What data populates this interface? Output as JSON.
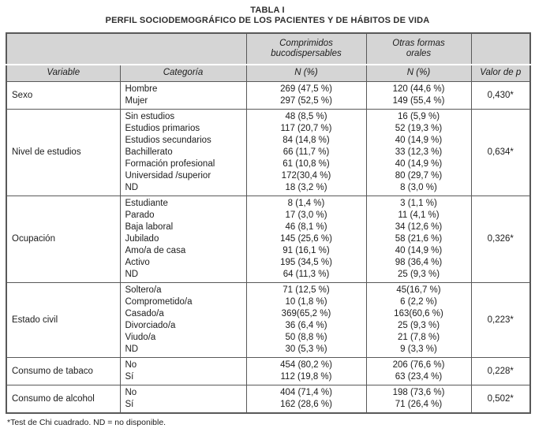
{
  "title": {
    "label": "TABLA I",
    "caption": "PERFIL SOCIODEMOGRÁFICO DE LOS PACIENTES Y DE HÁBITOS DE VIDA"
  },
  "header": {
    "group1": "Comprimidos\nbucodispersables",
    "group2": "Otras formas\norales",
    "variable": "Variable",
    "categoria": "Categoría",
    "n1": "N (%)",
    "n2": "N (%)",
    "valor_p": "Valor de p"
  },
  "groups": [
    {
      "variable": "Sexo",
      "p": "0,430*",
      "rows": [
        {
          "cat": "Hombre",
          "n1": "269 (47,5 %)",
          "n2": "120 (44,6 %)"
        },
        {
          "cat": "Mujer",
          "n1": "297 (52,5 %)",
          "n2": "149 (55,4 %)"
        }
      ]
    },
    {
      "variable": "Nivel de estudios",
      "p": "0,634*",
      "rows": [
        {
          "cat": "Sin estudios",
          "n1": "48 (8,5 %)",
          "n2": "16 (5,9 %)"
        },
        {
          "cat": "Estudios primarios",
          "n1": "117 (20,7 %)",
          "n2": "52 (19,3 %)"
        },
        {
          "cat": "Estudios secundarios",
          "n1": "84 (14,8 %)",
          "n2": "40 (14,9 %)"
        },
        {
          "cat": "Bachillerato",
          "n1": "66 (11,7 %)",
          "n2": "33 (12,3 %)"
        },
        {
          "cat": "Formación profesional",
          "n1": "61 (10,8 %)",
          "n2": "40 (14,9 %)"
        },
        {
          "cat": "Universidad /superior",
          "n1": "172(30,4 %)",
          "n2": "80 (29,7 %)"
        },
        {
          "cat": "ND",
          "n1": "18 (3,2 %)",
          "n2": "8 (3,0 %)"
        }
      ]
    },
    {
      "variable": "Ocupación",
      "p": "0,326*",
      "rows": [
        {
          "cat": "Estudiante",
          "n1": "8 (1,4 %)",
          "n2": "3 (1,1 %)"
        },
        {
          "cat": "Parado",
          "n1": "17 (3,0 %)",
          "n2": "11 (4,1 %)"
        },
        {
          "cat": "Baja laboral",
          "n1": "46 (8,1 %)",
          "n2": "34 (12,6 %)"
        },
        {
          "cat": "Jubilado",
          "n1": "145 (25,6 %)",
          "n2": "58 (21,6 %)"
        },
        {
          "cat": "Amo/a de casa",
          "n1": "91 (16,1 %)",
          "n2": "40 (14,9 %)"
        },
        {
          "cat": "Activo",
          "n1": "195 (34,5 %)",
          "n2": "98 (36,4 %)"
        },
        {
          "cat": "ND",
          "n1": "64 (11,3 %)",
          "n2": "25 (9,3 %)"
        }
      ]
    },
    {
      "variable": "Estado civil",
      "p": "0,223*",
      "rows": [
        {
          "cat": "Soltero/a",
          "n1": "71 (12,5 %)",
          "n2": "45(16,7 %)"
        },
        {
          "cat": "Comprometido/a",
          "n1": "10 (1,8 %)",
          "n2": "6 (2,2 %)"
        },
        {
          "cat": "Casado/a",
          "n1": "369(65,2 %)",
          "n2": "163(60,6 %)"
        },
        {
          "cat": "Divorciado/a",
          "n1": "36 (6,4 %)",
          "n2": "25 (9,3 %)"
        },
        {
          "cat": "Viudo/a",
          "n1": "50 (8,8 %)",
          "n2": "21 (7,8 %)"
        },
        {
          "cat": "ND",
          "n1": "30 (5,3 %)",
          "n2": "9 (3,3 %)"
        }
      ]
    },
    {
      "variable": "Consumo de tabaco",
      "p": "0,228*",
      "rows": [
        {
          "cat": "No",
          "n1": "454 (80,2 %)",
          "n2": "206 (76,6 %)"
        },
        {
          "cat": "Sí",
          "n1": "112 (19,8 %)",
          "n2": "63 (23,4 %)"
        }
      ]
    },
    {
      "variable": "Consumo de alcohol",
      "p": "0,502*",
      "rows": [
        {
          "cat": "No",
          "n1": "404 (71,4 %)",
          "n2": "198 (73,6 %)"
        },
        {
          "cat": "Sí",
          "n1": "162 (28,6 %)",
          "n2": "71 (26,4 %)"
        }
      ]
    }
  ],
  "footnote": "*Test de Chi cuadrado. ND = no disponible."
}
